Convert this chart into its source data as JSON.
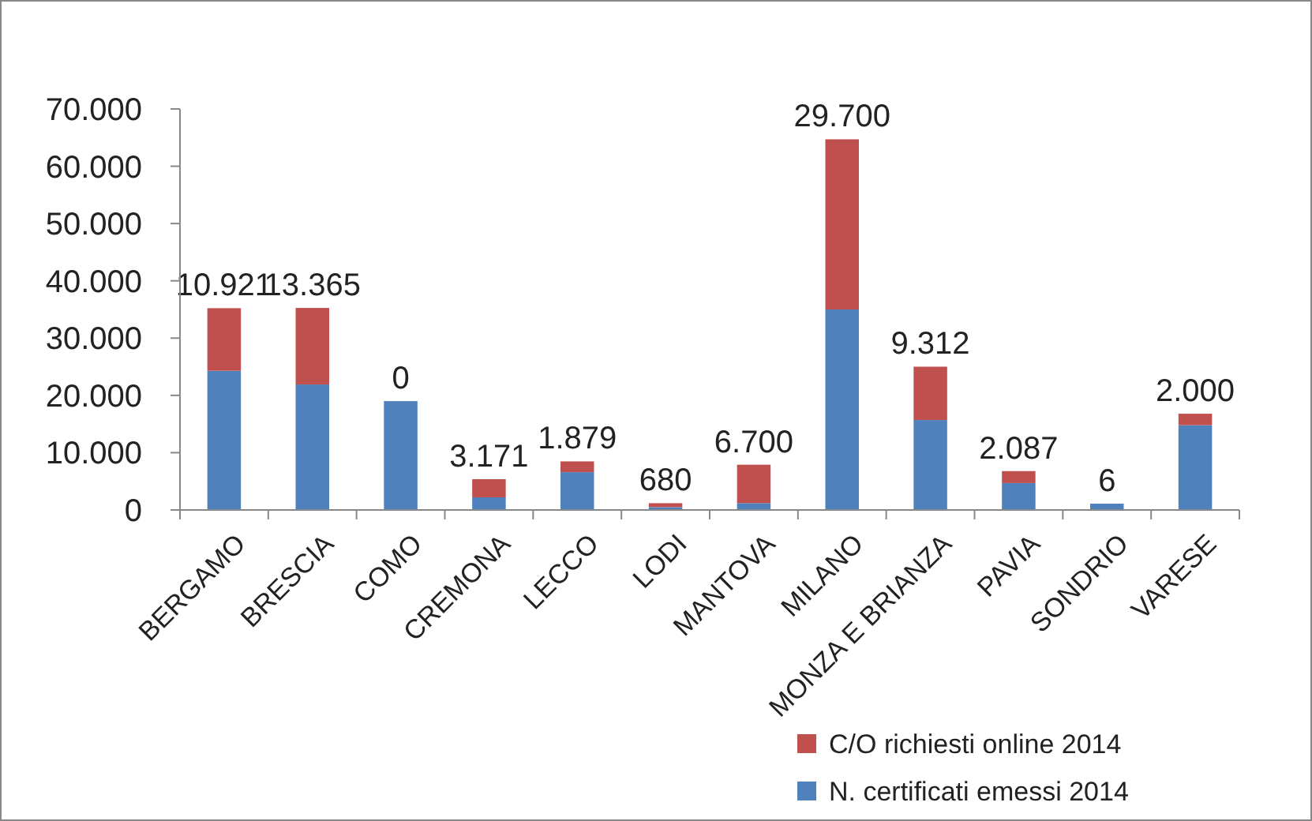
{
  "chart_data": {
    "type": "bar",
    "stacked": true,
    "categories": [
      "BERGAMO",
      "BRESCIA",
      "COMO",
      "CREMONA",
      "LECCO",
      "LODI",
      "MANTOVA",
      "MILANO",
      "MONZA E BRIANZA",
      "PAVIA",
      "SONDRIO",
      "VARESE"
    ],
    "series": [
      {
        "name": "N. certificati emessi 2014",
        "color": "#4f81bd",
        "values": [
          24300,
          21900,
          19000,
          2200,
          6600,
          500,
          1200,
          35000,
          15700,
          4700,
          1100,
          14800
        ]
      },
      {
        "name": "C/O richiesti online 2014",
        "color": "#c0504d",
        "values": [
          10921,
          13365,
          0,
          3171,
          1879,
          680,
          6700,
          29700,
          9312,
          2087,
          6,
          2000
        ],
        "value_labels": [
          "10.921",
          "13.365",
          "0",
          "3.171",
          "1.879",
          "680",
          "6.700",
          "29.700",
          "9.312",
          "2.087",
          "6",
          "2.000"
        ]
      }
    ],
    "ylim": [
      0,
      70000
    ],
    "yticks": [
      {
        "value": 0,
        "label": "0"
      },
      {
        "value": 10000,
        "label": "10.000"
      },
      {
        "value": 20000,
        "label": "20.000"
      },
      {
        "value": 30000,
        "label": "30.000"
      },
      {
        "value": 40000,
        "label": "40.000"
      },
      {
        "value": 50000,
        "label": "50.000"
      },
      {
        "value": 60000,
        "label": "60.000"
      },
      {
        "value": 70000,
        "label": "70.000"
      }
    ],
    "grid": false,
    "legend": "bottom right"
  }
}
